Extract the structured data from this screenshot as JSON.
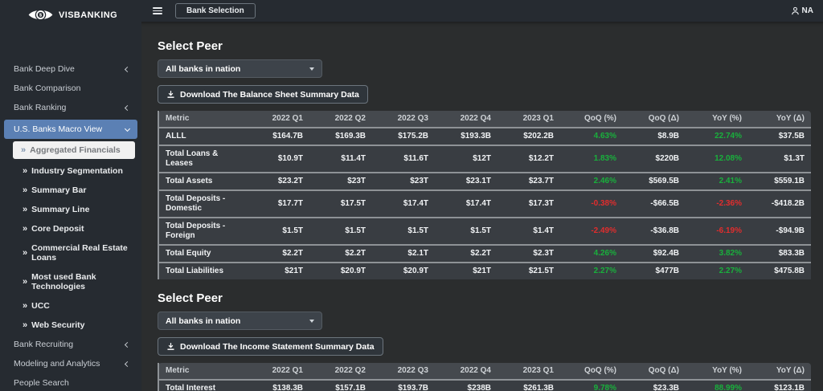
{
  "colors": {
    "positive": "#19b03c",
    "negative": "#e12d2d",
    "active_nav": "#5b80b4",
    "sidebar_bg": "#262b31",
    "content_bg": "#2b2d2e"
  },
  "topbar": {
    "bank_selection_label": "Bank Selection",
    "user_label": "NA"
  },
  "sidebar": {
    "logo_text": "VISBANKING",
    "items": [
      {
        "label": "Bank Deep Dive",
        "chevron": "left"
      },
      {
        "label": "Bank Comparison"
      },
      {
        "label": "Bank Ranking",
        "chevron": "left"
      },
      {
        "label": "U.S. Banks Macro View",
        "chevron": "down",
        "active": true
      },
      {
        "label": "Aggregated Financials",
        "sub": true,
        "selected": true
      },
      {
        "label": "Industry Segmentation",
        "sub": true
      },
      {
        "label": "Summary Bar",
        "sub": true
      },
      {
        "label": "Summary Line",
        "sub": true
      },
      {
        "label": "Core Deposit",
        "sub": true
      },
      {
        "label": "Commercial Real Estate Loans",
        "sub": true
      },
      {
        "label": "Most used Bank Technologies",
        "sub": true
      },
      {
        "label": "UCC",
        "sub": true
      },
      {
        "label": "Web Security",
        "sub": true
      },
      {
        "label": "Bank Recruiting",
        "chevron": "left"
      },
      {
        "label": "Modeling and Analytics",
        "chevron": "left"
      },
      {
        "label": "People Search"
      }
    ]
  },
  "main": {
    "sections": [
      {
        "heading": "Select Peer",
        "dropdown_value": "All banks in nation",
        "download_label": "Download The Balance Sheet Summary Data",
        "table": {
          "columns": [
            "Metric",
            "2022 Q1",
            "2022 Q2",
            "2022 Q3",
            "2022 Q4",
            "2023 Q1",
            "QoQ (%)",
            "QoQ (Δ)",
            "YoY (%)",
            "YoY (Δ)"
          ],
          "rows": [
            {
              "metric": "ALLL",
              "values": [
                "$164.7B",
                "$169.3B",
                "$175.2B",
                "$193.3B",
                "$202.2B",
                "4.63%",
                "$8.9B",
                "22.74%",
                "$37.5B"
              ],
              "direction": "up"
            },
            {
              "metric": "Total Loans & Leases",
              "values": [
                "$10.9T",
                "$11.4T",
                "$11.6T",
                "$12T",
                "$12.2T",
                "1.83%",
                "$220B",
                "12.08%",
                "$1.3T"
              ],
              "direction": "up"
            },
            {
              "metric": "Total Assets",
              "values": [
                "$23.2T",
                "$23T",
                "$23T",
                "$23.1T",
                "$23.7T",
                "2.46%",
                "$569.5B",
                "2.41%",
                "$559.1B"
              ],
              "direction": "up"
            },
            {
              "metric": "Total Deposits - Domestic",
              "values": [
                "$17.7T",
                "$17.5T",
                "$17.4T",
                "$17.4T",
                "$17.3T",
                "-0.38%",
                "-$66.5B",
                "-2.36%",
                "-$418.2B"
              ],
              "direction": "down"
            },
            {
              "metric": "Total Deposits - Foreign",
              "values": [
                "$1.5T",
                "$1.5T",
                "$1.5T",
                "$1.5T",
                "$1.4T",
                "-2.49%",
                "-$36.8B",
                "-6.19%",
                "-$94.9B"
              ],
              "direction": "down"
            },
            {
              "metric": "Total Equity",
              "values": [
                "$2.2T",
                "$2.2T",
                "$2.1T",
                "$2.2T",
                "$2.3T",
                "4.26%",
                "$92.4B",
                "3.82%",
                "$83.3B"
              ],
              "direction": "up"
            },
            {
              "metric": "Total Liabilities",
              "values": [
                "$21T",
                "$20.9T",
                "$20.9T",
                "$21T",
                "$21.5T",
                "2.27%",
                "$477B",
                "2.27%",
                "$475.8B"
              ],
              "direction": "up"
            }
          ]
        }
      },
      {
        "heading": "Select Peer",
        "dropdown_value": "All banks in nation",
        "download_label": "Download The Income Statement Summary Data",
        "table": {
          "columns": [
            "Metric",
            "2022 Q1",
            "2022 Q2",
            "2022 Q3",
            "2022 Q4",
            "2023 Q1",
            "QoQ (%)",
            "QoQ (Δ)",
            "YoY (%)",
            "YoY (Δ)"
          ],
          "rows": [
            {
              "metric": "Total Interest",
              "values": [
                "$138.3B",
                "$157.1B",
                "$193.7B",
                "$238B",
                "$261.3B",
                "9.78%",
                "$23.3B",
                "88.99%",
                "$123.1B"
              ],
              "direction": "up"
            }
          ]
        }
      }
    ]
  }
}
